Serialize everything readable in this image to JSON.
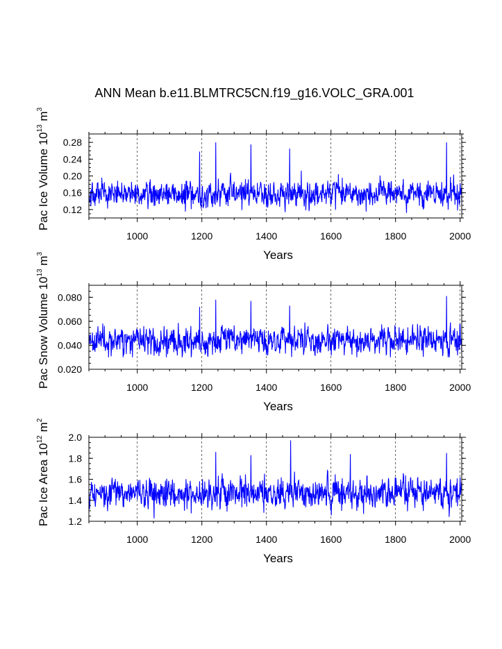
{
  "title": "ANN Mean b.e11.BLMTRC5CN.f19_g16.VOLC_GRA.001",
  "colors": {
    "series": "#0000ff",
    "axis": "#000000",
    "grid": "#000000"
  },
  "chart_data": [
    {
      "type": "line",
      "xlabel": "Years",
      "ylabel": {
        "text": "Pac Ice Volume 10",
        "exp1": "13",
        "unit": " m",
        "exp2": "3"
      },
      "xlim": [
        850,
        2005
      ],
      "ylim": [
        0.1,
        0.3
      ],
      "x_ticks": [
        1000,
        1200,
        1400,
        1600,
        1800,
        2000
      ],
      "x_tick_labels": [
        "1000",
        "1200",
        "1400",
        "1600",
        "1800",
        "2000"
      ],
      "y_ticks": [
        0.12,
        0.16,
        0.2,
        0.24,
        0.28
      ],
      "y_tick_labels": [
        "0.12",
        "0.16",
        "0.20",
        "0.24",
        "0.28"
      ],
      "grid": "dashed vertical at x major ticks",
      "series": [
        {
          "x_start": 850,
          "x_end": 2005,
          "step": 1,
          "mean": 0.158,
          "std": 0.022,
          "min": 0.11,
          "max": 0.28,
          "peaks": [
            {
              "x": 1243,
              "y": 0.28
            },
            {
              "x": 1352,
              "y": 0.275
            },
            {
              "x": 1958,
              "y": 0.28
            },
            {
              "x": 1193,
              "y": 0.258
            },
            {
              "x": 1472,
              "y": 0.265
            }
          ]
        }
      ]
    },
    {
      "type": "line",
      "xlabel": "Years",
      "ylabel": {
        "text": "Pac Snow Volume 10",
        "exp1": "13",
        "unit": " m",
        "exp2": "3"
      },
      "xlim": [
        850,
        2005
      ],
      "ylim": [
        0.02,
        0.09
      ],
      "x_ticks": [
        1000,
        1200,
        1400,
        1600,
        1800,
        2000
      ],
      "x_tick_labels": [
        "1000",
        "1200",
        "1400",
        "1600",
        "1800",
        "2000"
      ],
      "y_ticks": [
        0.02,
        0.04,
        0.06,
        0.08
      ],
      "y_tick_labels": [
        "0.020",
        "0.040",
        "0.060",
        "0.080"
      ],
      "grid": "dashed vertical at x major ticks",
      "series": [
        {
          "x_start": 850,
          "x_end": 2005,
          "step": 1,
          "mean": 0.044,
          "std": 0.008,
          "min": 0.03,
          "max": 0.081,
          "peaks": [
            {
              "x": 1243,
              "y": 0.078
            },
            {
              "x": 1352,
              "y": 0.077
            },
            {
              "x": 1958,
              "y": 0.081
            },
            {
              "x": 1472,
              "y": 0.073
            },
            {
              "x": 1193,
              "y": 0.072
            }
          ]
        }
      ]
    },
    {
      "type": "line",
      "xlabel": "Years",
      "ylabel": {
        "text": "Pac Ice Area 10",
        "exp1": "12",
        "unit": " m",
        "exp2": "2"
      },
      "xlim": [
        850,
        2005
      ],
      "ylim": [
        1.2,
        2.0
      ],
      "x_ticks": [
        1000,
        1200,
        1400,
        1600,
        1800,
        2000
      ],
      "x_tick_labels": [
        "1000",
        "1200",
        "1400",
        "1600",
        "1800",
        "2000"
      ],
      "y_ticks": [
        1.2,
        1.4,
        1.6,
        1.8,
        2.0
      ],
      "y_tick_labels": [
        "1.2",
        "1.4",
        "1.6",
        "1.8",
        "2.0"
      ],
      "grid": "dashed vertical at x major ticks",
      "series": [
        {
          "x_start": 850,
          "x_end": 2005,
          "step": 1,
          "mean": 1.47,
          "std": 0.1,
          "min": 1.22,
          "max": 1.97,
          "peaks": [
            {
              "x": 1475,
              "y": 1.97
            },
            {
              "x": 1243,
              "y": 1.86
            },
            {
              "x": 1958,
              "y": 1.85
            },
            {
              "x": 1660,
              "y": 1.84
            },
            {
              "x": 1352,
              "y": 1.83
            }
          ]
        }
      ]
    }
  ]
}
